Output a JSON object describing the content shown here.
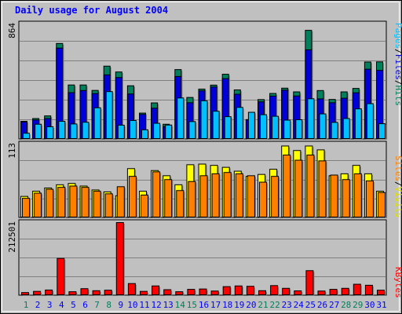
{
  "title": "Daily usage for August 2004",
  "colors": {
    "background": "#c0c0c0",
    "title": "#0000ff",
    "hits": "#00805c",
    "files": "#0000d8",
    "pages": "#00c0ff",
    "visits": "#ffff00",
    "sites": "#ff8000",
    "kbytes": "#ff0000",
    "weekend_label": "#00805c",
    "weekday_label": "#0000ff"
  },
  "legends": {
    "top": [
      {
        "text": "Pages",
        "color": "#00c0ff"
      },
      {
        "text": "/",
        "color": "#000000"
      },
      {
        "text": "Files",
        "color": "#0000d8"
      },
      {
        "text": "/",
        "color": "#000000"
      },
      {
        "text": "Hits",
        "color": "#00805c"
      }
    ],
    "middle": [
      {
        "text": "Sites",
        "color": "#ff8000"
      },
      {
        "text": "/",
        "color": "#000000"
      },
      {
        "text": "Visits",
        "color": "#e0e000"
      }
    ],
    "bottom": [
      {
        "text": "KBytes",
        "color": "#ff0000"
      }
    ]
  },
  "chart_data": [
    {
      "type": "bar",
      "panel": "hits_files_pages",
      "ymax_label": "864",
      "ylim": [
        0,
        864
      ],
      "categories": [
        "1",
        "2",
        "3",
        "4",
        "5",
        "6",
        "7",
        "8",
        "9",
        "10",
        "11",
        "12",
        "13",
        "14",
        "15",
        "16",
        "17",
        "18",
        "19",
        "20",
        "21",
        "22",
        "23",
        "24",
        "25",
        "26",
        "27",
        "28",
        "29",
        "30",
        "31"
      ],
      "weekend": [
        1,
        7,
        8,
        14,
        15,
        21,
        22,
        28,
        29
      ],
      "series": [
        {
          "name": "Hits",
          "values": [
            130,
            151,
            171,
            717,
            404,
            404,
            363,
            546,
            502,
            398,
            192,
            269,
            108,
            520,
            310,
            373,
            403,
            485,
            367,
            143,
            294,
            340,
            380,
            352,
            816,
            362,
            295,
            352,
            378,
            577,
            578
          ]
        },
        {
          "name": "Files",
          "values": [
            125,
            140,
            151,
            682,
            346,
            362,
            339,
            480,
            460,
            336,
            182,
            229,
            90,
            468,
            270,
            360,
            389,
            452,
            334,
            142,
            277,
            320,
            365,
            321,
            669,
            299,
            270,
            304,
            345,
            523,
            514
          ]
        },
        {
          "name": "Pages",
          "values": [
            40,
            108,
            89,
            130,
            110,
            123,
            232,
            354,
            101,
            136,
            66,
            115,
            102,
            306,
            128,
            285,
            206,
            165,
            235,
            198,
            180,
            168,
            139,
            142,
            300,
            186,
            122,
            151,
            224,
            263,
            112
          ]
        }
      ]
    },
    {
      "type": "bar",
      "panel": "visits_sites",
      "ymax_label": "113",
      "ylim": [
        0,
        113
      ],
      "categories": [
        "1",
        "2",
        "3",
        "4",
        "5",
        "6",
        "7",
        "8",
        "9",
        "10",
        "11",
        "12",
        "13",
        "14",
        "15",
        "16",
        "17",
        "18",
        "19",
        "20",
        "21",
        "22",
        "23",
        "24",
        "25",
        "26",
        "27",
        "28",
        "29",
        "30",
        "31"
      ],
      "series": [
        {
          "name": "Visits",
          "values": [
            32,
            40,
            45,
            50,
            52,
            48,
            42,
            39,
            33,
            75,
            40,
            72,
            64,
            50,
            81,
            82,
            80,
            77,
            71,
            63,
            66,
            74,
            110,
            103,
            110,
            104,
            64,
            67,
            80,
            67,
            40
          ]
        },
        {
          "name": "Sites",
          "values": [
            29,
            37,
            43,
            46,
            48,
            46,
            40,
            36,
            47,
            63,
            34,
            70,
            58,
            41,
            55,
            64,
            67,
            69,
            67,
            64,
            54,
            63,
            96,
            88,
            96,
            87,
            65,
            58,
            67,
            56,
            38
          ]
        }
      ]
    },
    {
      "type": "bar",
      "panel": "kbytes",
      "ymax_label": "212501",
      "ylim": [
        0,
        212501
      ],
      "categories": [
        "1",
        "2",
        "3",
        "4",
        "5",
        "6",
        "7",
        "8",
        "9",
        "10",
        "11",
        "12",
        "13",
        "14",
        "15",
        "16",
        "17",
        "18",
        "19",
        "20",
        "21",
        "22",
        "23",
        "24",
        "25",
        "26",
        "27",
        "28",
        "29",
        "30",
        "31"
      ],
      "series": [
        {
          "name": "KBytes",
          "values": [
            6500,
            10000,
            14000,
            107000,
            9000,
            18000,
            12000,
            13500,
            212501,
            33000,
            10000,
            26000,
            15000,
            9000,
            16000,
            17000,
            11000,
            24000,
            26000,
            25000,
            12000,
            27000,
            19000,
            11500,
            71000,
            11000,
            16000,
            19000,
            31000,
            28000,
            13500
          ]
        }
      ]
    }
  ]
}
